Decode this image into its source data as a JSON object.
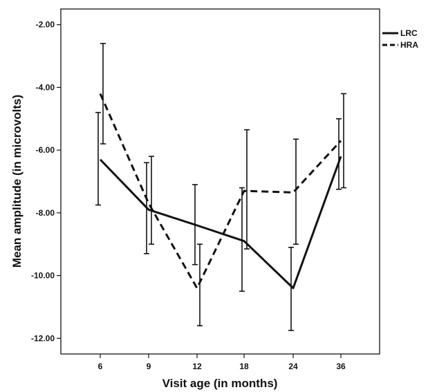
{
  "chart_data": {
    "type": "line",
    "title": "",
    "xlabel": "Visit age (in months)",
    "ylabel": "Mean amplitude (in microvolts)",
    "categories": [
      "6",
      "9",
      "12",
      "18",
      "24",
      "36"
    ],
    "ylim": [
      -12.5,
      -1.5
    ],
    "yticks": [
      -2.0,
      -4.0,
      -6.0,
      -8.0,
      -10.0,
      -12.0
    ],
    "ytick_labels": [
      "-2.00",
      "-4.00",
      "-6.00",
      "-8.00",
      "-10.00",
      "-12.00"
    ],
    "grid": false,
    "legend_position": "top-right",
    "series": [
      {
        "name": "LRC",
        "line_style": "solid",
        "color": "#111111",
        "values": [
          -6.3,
          -7.9,
          -8.4,
          -8.9,
          -10.4,
          -6.2
        ],
        "error_low": [
          -7.75,
          -9.3,
          -9.65,
          -10.5,
          -11.75,
          -7.25
        ],
        "error_high": [
          -4.8,
          -6.4,
          -7.1,
          -7.2,
          -9.1,
          -5.0
        ]
      },
      {
        "name": "HRA",
        "line_style": "dashed",
        "color": "#111111",
        "values": [
          -4.2,
          -7.7,
          -10.4,
          -7.3,
          -7.35,
          -5.7
        ],
        "error_low": [
          -5.8,
          -9.0,
          -11.6,
          -9.15,
          -9.0,
          -7.2
        ],
        "error_high": [
          -2.6,
          -6.2,
          -9.0,
          -5.35,
          -5.65,
          -4.2
        ]
      }
    ]
  }
}
